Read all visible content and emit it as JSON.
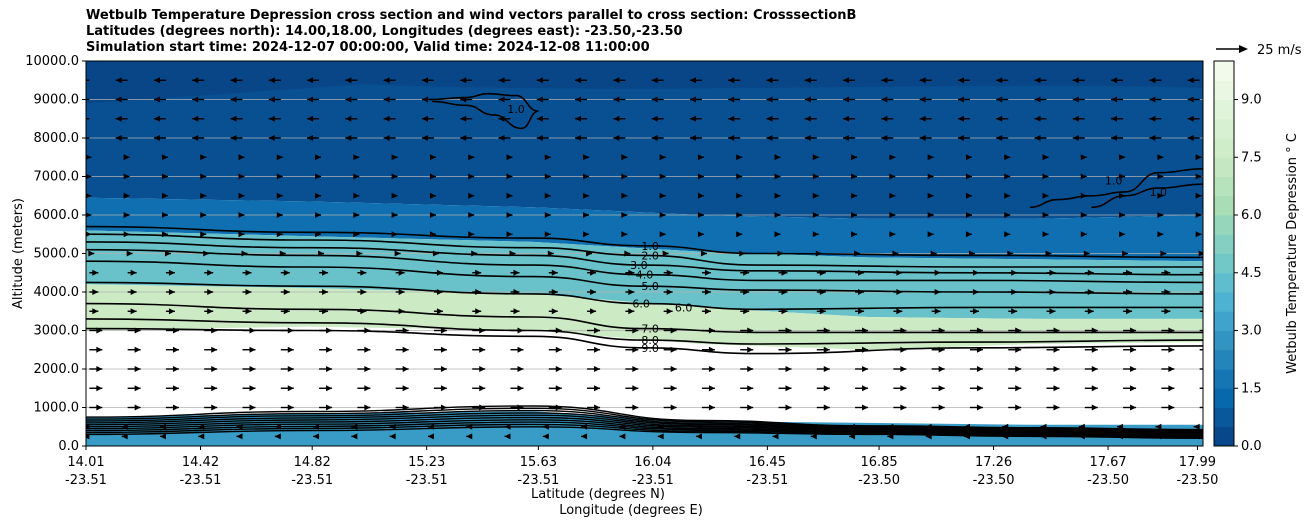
{
  "chart_data": {
    "type": "contourf",
    "title_lines": [
      "Wetbulb Temperature Depression cross section and wind vectors parallel to cross section: CrosssectionB",
      "Latitudes (degrees north): 14.00,18.00, Longitudes (degrees east): -23.50,-23.50",
      "Simulation start time: 2024-12-07 00:00:00, Valid time: 2024-12-08 11:00:00"
    ],
    "ylabel": "Altitude (meters)",
    "xlabel_lat": "Latitude (degrees N)",
    "xlabel_lon": "Longitude (degrees E)",
    "ylim": [
      0,
      10000
    ],
    "yticks": [
      0,
      1000,
      2000,
      3000,
      4000,
      5000,
      6000,
      7000,
      8000,
      9000,
      10000
    ],
    "ytick_labels": [
      "0.0",
      "1000.0",
      "2000.0",
      "3000.0",
      "4000.0",
      "5000.0",
      "6000.0",
      "7000.0",
      "8000.0",
      "9000.0",
      "10000.0"
    ],
    "x_fraction_range": [
      0,
      1
    ],
    "xticks": [
      {
        "frac": 0.0,
        "lat": "14.01",
        "lon": "-23.51"
      },
      {
        "frac": 0.1025,
        "lat": "14.42",
        "lon": "-23.51"
      },
      {
        "frac": 0.2025,
        "lat": "14.82",
        "lon": "-23.51"
      },
      {
        "frac": 0.305,
        "lat": "15.23",
        "lon": "-23.51"
      },
      {
        "frac": 0.405,
        "lat": "15.63",
        "lon": "-23.51"
      },
      {
        "frac": 0.5075,
        "lat": "16.04",
        "lon": "-23.51"
      },
      {
        "frac": 0.61,
        "lat": "16.45",
        "lon": "-23.51"
      },
      {
        "frac": 0.71,
        "lat": "16.85",
        "lon": "-23.50"
      },
      {
        "frac": 0.8125,
        "lat": "17.26",
        "lon": "-23.50"
      },
      {
        "frac": 0.915,
        "lat": "17.67",
        "lon": "-23.50"
      },
      {
        "frac": 0.995,
        "lat": "17.99",
        "lon": "-23.50"
      }
    ],
    "grid": "horizontal",
    "colorbar": {
      "label": "Wetbulb Temperature Depression $^\\circ$C",
      "label_text": "Wetbulb Temperature Depression ° C",
      "min": 0,
      "max": 10,
      "levels": 20,
      "ticks": [
        0,
        1.5,
        3,
        4.5,
        6,
        7.5,
        9
      ],
      "tick_labels": [
        "0.0",
        "1.5",
        "3.0",
        "4.5",
        "6.0",
        "7.5",
        "9.0"
      ],
      "colormap": "GnBu_r"
    },
    "quiver_key": {
      "label": "25 m/s",
      "value": 25
    },
    "contour_levels": [
      1,
      2,
      3,
      4,
      5,
      6,
      7,
      8,
      9
    ],
    "contour_labels": [
      "1.0",
      "2.0",
      "3.0",
      "4.0",
      "5.0",
      "6.0",
      "6.0",
      "7.0",
      "8.0",
      "9.0",
      "1.0",
      "1.0",
      "1.0"
    ],
    "fill_profile_x_frac": [
      0,
      0.2,
      0.4,
      0.55,
      0.7,
      0.85,
      1.0
    ],
    "fill_bands": [
      {
        "name": "surface",
        "y_bottom": 0,
        "y_top_profile": [
          750,
          850,
          900,
          650,
          600,
          550,
          550
        ],
        "value_low_fill": 3.0
      },
      {
        "name": "dry-layer",
        "y_bottom_profile": [
          3000,
          3100,
          3000,
          2650,
          2500,
          2650,
          2700
        ],
        "y_top_profile": [
          4200,
          4100,
          3950,
          3600,
          3350,
          3300,
          3300
        ],
        "value": 7.5
      },
      {
        "name": "mid",
        "y_bottom_profile": [
          4200,
          4100,
          3950,
          3600,
          3350,
          3300,
          3300
        ],
        "y_top_profile": [
          5600,
          5450,
          5300,
          5050,
          4900,
          4850,
          4800
        ],
        "value": 4.5
      },
      {
        "name": "moist-upper",
        "y_bottom_profile": [
          5600,
          5450,
          5300,
          5050,
          4900,
          4850,
          4800
        ],
        "y_top_profile": [
          6450,
          6350,
          6200,
          6000,
          5900,
          5900,
          6000
        ],
        "value": 1.5
      },
      {
        "name": "saturated-top",
        "value": 0.5
      }
    ],
    "contours": [
      {
        "level": 1.0,
        "x": [
          0,
          0.2,
          0.4,
          0.5,
          0.6,
          0.8,
          1.0
        ],
        "y": [
          5700,
          5550,
          5400,
          5200,
          5000,
          4950,
          4900
        ]
      },
      {
        "level": 2.0,
        "x": [
          0,
          0.2,
          0.4,
          0.5,
          0.6,
          0.8,
          1.0
        ],
        "y": [
          5500,
          5350,
          5150,
          4950,
          4700,
          4650,
          4650
        ]
      },
      {
        "level": 3.0,
        "x": [
          0,
          0.2,
          0.4,
          0.5,
          0.6,
          0.8,
          1.0
        ],
        "y": [
          5300,
          5150,
          4950,
          4700,
          4550,
          4500,
          4450
        ]
      },
      {
        "level": 4.0,
        "x": [
          0,
          0.2,
          0.4,
          0.5,
          0.6,
          0.8,
          1.0
        ],
        "y": [
          5100,
          4950,
          4700,
          4450,
          4300,
          4300,
          4250
        ]
      },
      {
        "level": 5.0,
        "x": [
          0,
          0.2,
          0.4,
          0.5,
          0.6,
          0.8,
          1.0
        ],
        "y": [
          4800,
          4650,
          4400,
          4150,
          4050,
          4000,
          3950
        ]
      },
      {
        "level": 6.0,
        "x": [
          0,
          0.2,
          0.4,
          0.5,
          0.6,
          0.8,
          1.0
        ],
        "y": [
          4250,
          4150,
          3950,
          3700,
          3550,
          3600,
          3600
        ]
      },
      {
        "level": 7.0,
        "x": [
          0,
          0.2,
          0.4,
          0.5,
          0.6,
          0.8,
          1.0
        ],
        "y": [
          3700,
          3550,
          3350,
          3050,
          2950,
          2950,
          2950
        ]
      },
      {
        "level": 8.0,
        "x": [
          0,
          0.2,
          0.4,
          0.5,
          0.6,
          0.8,
          1.0
        ],
        "y": [
          3300,
          3200,
          3000,
          2750,
          2650,
          2700,
          2750
        ]
      },
      {
        "level": 9.0,
        "x": [
          0,
          0.2,
          0.4,
          0.5,
          0.6,
          0.8,
          1.0
        ],
        "y": [
          3050,
          3000,
          2850,
          2550,
          2400,
          2550,
          2600
        ]
      }
    ],
    "upper_contours": [
      {
        "level": 1.0,
        "x": [
          0.307,
          0.34,
          0.36,
          0.385,
          0.405,
          0.39,
          0.365,
          0.34,
          0.31
        ],
        "y": [
          9000,
          9050,
          9150,
          9100,
          8700,
          8250,
          8600,
          8850,
          8950
        ]
      },
      {
        "level": 1.0,
        "x": [
          0.845,
          0.87,
          0.9,
          0.93,
          0.96,
          1.0
        ],
        "y": [
          6200,
          6400,
          6500,
          6600,
          7100,
          7200
        ]
      },
      {
        "level": 1.0,
        "x": [
          0.9,
          0.93,
          0.96,
          1.0
        ],
        "y": [
          6200,
          6500,
          6700,
          6800
        ]
      }
    ],
    "surface_contours_count": 10
  }
}
